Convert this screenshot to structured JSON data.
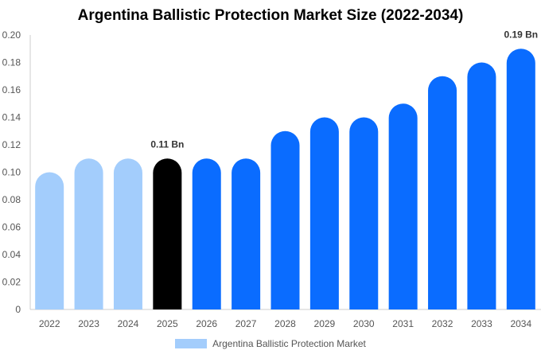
{
  "chart_data": {
    "type": "bar",
    "title": "Argentina Ballistic Protection Market Size (2022-2034)",
    "categories": [
      "2022",
      "2023",
      "2024",
      "2025",
      "2026",
      "2027",
      "2028",
      "2029",
      "2030",
      "2031",
      "2032",
      "2033",
      "2034"
    ],
    "series": [
      {
        "name": "Argentina Ballistic Protection Market",
        "values": [
          0.1,
          0.11,
          0.11,
          0.11,
          0.11,
          0.11,
          0.13,
          0.14,
          0.14,
          0.15,
          0.17,
          0.18,
          0.19
        ]
      }
    ],
    "bar_colors": [
      "#a3cdfc",
      "#a3cdfc",
      "#a3cdfc",
      "#000000",
      "#0a6cff",
      "#0a6cff",
      "#0a6cff",
      "#0a6cff",
      "#0a6cff",
      "#0a6cff",
      "#0a6cff",
      "#0a6cff",
      "#0a6cff"
    ],
    "data_labels": [
      {
        "category": "2025",
        "text": "0.11 Bn"
      },
      {
        "category": "2034",
        "text": "0.19 Bn"
      }
    ],
    "y_ticks": [
      "0",
      "0.02",
      "0.04",
      "0.06",
      "0.08",
      "0.10",
      "0.12",
      "0.14",
      "0.16",
      "0.18",
      "0.20"
    ],
    "ylim": [
      0,
      0.2
    ],
    "grid": false,
    "legend_position": "bottom",
    "legend_color": "#a3cdfc"
  }
}
